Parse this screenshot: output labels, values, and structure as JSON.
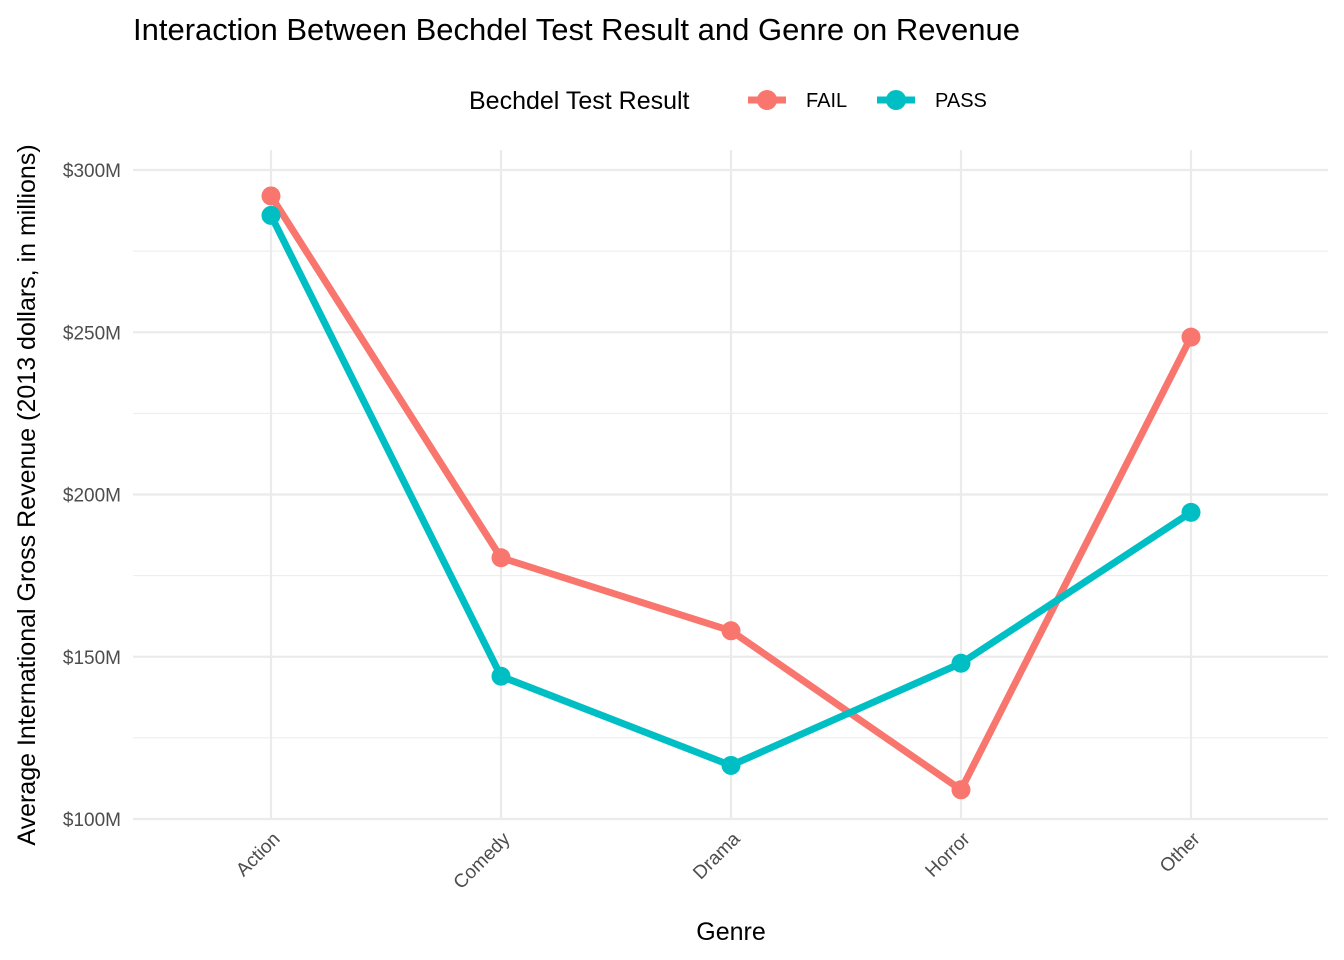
{
  "chart_data": {
    "type": "line",
    "title": "Interaction Between Bechdel Test Result and Genre on Revenue",
    "xlabel": "Genre",
    "ylabel": "Average International Gross Revenue (2013 dollars, in millions)",
    "categories": [
      "Action",
      "Comedy",
      "Drama",
      "Horror",
      "Other"
    ],
    "ylim": [
      100,
      300
    ],
    "yticks": [
      100,
      150,
      200,
      250,
      300
    ],
    "ytick_labels": [
      "$100M",
      "$150M",
      "$200M",
      "$250M",
      "$300M"
    ],
    "legend": {
      "title": "Bechdel Test Result",
      "position": "top"
    },
    "grid": true,
    "series": [
      {
        "name": "FAIL",
        "color": "#F8766D",
        "values": [
          292,
          180.5,
          158,
          109,
          248.5
        ]
      },
      {
        "name": "PASS",
        "color": "#00BFC4",
        "values": [
          286,
          144,
          116.5,
          148,
          194.5
        ]
      }
    ]
  }
}
